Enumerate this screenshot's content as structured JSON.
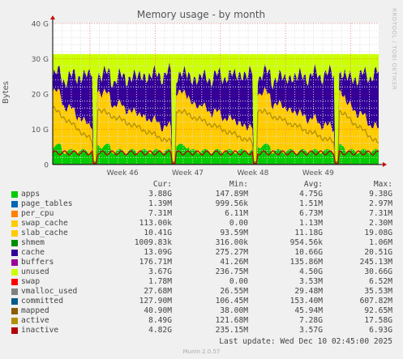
{
  "chart_data": {
    "type": "area",
    "title": "Memory usage - by month",
    "ylabel": "Bytes",
    "side_label": "RRDTOOL / TOBI OETIKER",
    "yticks": [
      "0",
      "10 G",
      "20 G",
      "30 G",
      "40 G"
    ],
    "ylim": [
      0,
      40
    ],
    "xticks": [
      "Week 46",
      "Week 47",
      "Week 48",
      "Week 49"
    ],
    "grid": true,
    "columns": [
      "Cur:",
      "Min:",
      "Avg:",
      "Max:"
    ],
    "series": [
      {
        "name": "apps",
        "color": "#00cc00",
        "cur": "3.88G",
        "min": "147.89M",
        "avg": "4.75G",
        "max": "9.38G"
      },
      {
        "name": "page_tables",
        "color": "#0066b3",
        "cur": "1.39M",
        "min": "999.56k",
        "avg": "1.51M",
        "max": "2.97M"
      },
      {
        "name": "per_cpu",
        "color": "#ff8000",
        "cur": "7.31M",
        "min": "6.11M",
        "avg": "6.73M",
        "max": "7.31M"
      },
      {
        "name": "swap_cache",
        "color": "#ffcc00",
        "cur": "113.00k",
        "min": "0.00",
        "avg": "1.13M",
        "max": "2.30M"
      },
      {
        "name": "slab_cache",
        "color": "#ffcc00",
        "cur": "10.41G",
        "min": "93.59M",
        "avg": "11.18G",
        "max": "19.08G"
      },
      {
        "name": "shmem",
        "color": "#008f00",
        "cur": "1009.83k",
        "min": "316.00k",
        "avg": "954.56k",
        "max": "1.06M"
      },
      {
        "name": "cache",
        "color": "#330099",
        "cur": "13.09G",
        "min": "275.27M",
        "avg": "10.66G",
        "max": "20.51G"
      },
      {
        "name": "buffers",
        "color": "#990099",
        "cur": "176.71M",
        "min": "41.26M",
        "avg": "135.86M",
        "max": "245.13M"
      },
      {
        "name": "unused",
        "color": "#ccff00",
        "cur": "3.67G",
        "min": "236.75M",
        "avg": "4.50G",
        "max": "30.66G"
      },
      {
        "name": "swap",
        "color": "#ff0000",
        "cur": "1.78M",
        "min": "0.00",
        "avg": "3.53M",
        "max": "6.52M"
      },
      {
        "name": "vmalloc_used",
        "color": "#808080",
        "cur": "27.68M",
        "min": "26.55M",
        "avg": "29.48M",
        "max": "35.53M"
      },
      {
        "name": "committed",
        "color": "#005b8a",
        "cur": "127.90M",
        "min": "106.45M",
        "avg": "153.40M",
        "max": "607.82M"
      },
      {
        "name": "mapped",
        "color": "#8a5b00",
        "cur": "40.90M",
        "min": "38.00M",
        "avg": "45.94M",
        "max": "92.65M"
      },
      {
        "name": "active",
        "color": "#b38f00",
        "cur": "8.49G",
        "min": "121.68M",
        "avg": "7.28G",
        "max": "17.58G"
      },
      {
        "name": "inactive",
        "color": "#b30000",
        "cur": "4.82G",
        "min": "235.15M",
        "avg": "3.57G",
        "max": "6.93G"
      }
    ]
  },
  "footer": {
    "last_update": "Last update: Wed Dec 10 02:45:00 2025",
    "munin": "Munin 2.0.57"
  }
}
